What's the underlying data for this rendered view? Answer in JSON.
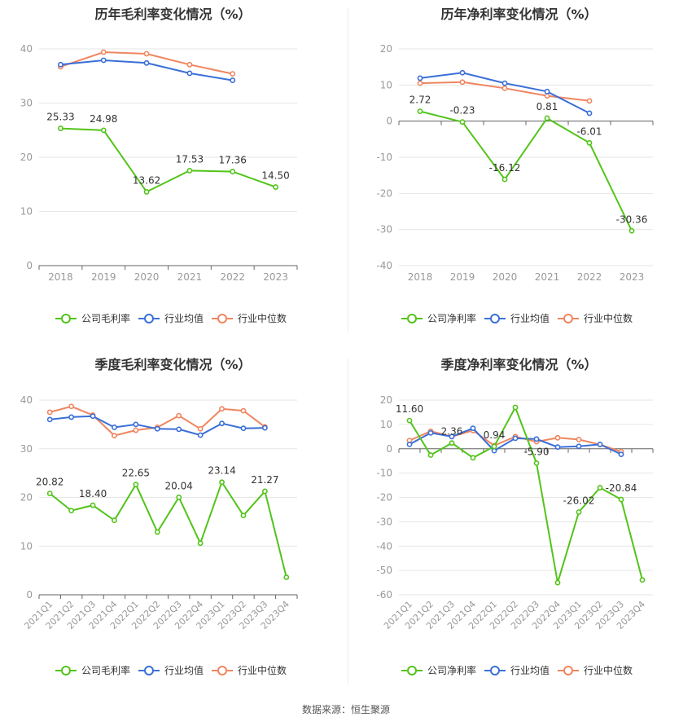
{
  "source": "数据来源：恒生聚源",
  "legend_labels": [
    "行业均值",
    "行业中位数"
  ],
  "colors": {
    "company": "#52c41a",
    "avg": "#3a6fd8",
    "median": "#f0855f",
    "grid": "#e6e6e6",
    "axis_text": "#999999",
    "label_text": "#333333"
  },
  "chart_data": [
    {
      "type": "line",
      "title": "历年毛利率变化情况（%）",
      "categories": [
        "2018",
        "2019",
        "2020",
        "2021",
        "2022",
        "2023"
      ],
      "ylim": [
        0,
        40
      ],
      "yticks": [
        0,
        10,
        20,
        30,
        40
      ],
      "grid": true,
      "legend": "bottom",
      "series": [
        {
          "name": "公司毛利率",
          "values": [
            25.33,
            24.98,
            13.62,
            17.53,
            17.36,
            14.5
          ],
          "labels": [
            "25.33",
            "24.98",
            "13.62",
            "17.53",
            "17.36",
            "14.50"
          ]
        },
        {
          "name": "行业均值",
          "values": [
            37.1,
            37.9,
            37.4,
            35.5,
            34.2,
            null
          ]
        },
        {
          "name": "行业中位数",
          "values": [
            36.7,
            39.4,
            39.1,
            37.1,
            35.4,
            null
          ]
        }
      ]
    },
    {
      "type": "line",
      "title": "历年净利率变化情况（%）",
      "categories": [
        "2018",
        "2019",
        "2020",
        "2021",
        "2022",
        "2023"
      ],
      "ylim": [
        -40,
        20
      ],
      "yticks": [
        -40,
        -30,
        -20,
        -10,
        0,
        10,
        20
      ],
      "grid": true,
      "legend": "bottom",
      "series": [
        {
          "name": "公司净利率",
          "values": [
            2.72,
            -0.23,
            -16.12,
            0.81,
            -6.01,
            -30.36
          ],
          "labels": [
            "2.72",
            "-0.23",
            "-16.12",
            "0.81",
            "-6.01",
            "-30.36"
          ]
        },
        {
          "name": "行业均值",
          "values": [
            11.9,
            13.4,
            10.5,
            8.2,
            2.2,
            null
          ]
        },
        {
          "name": "行业中位数",
          "values": [
            10.5,
            10.8,
            9.1,
            7.0,
            5.6,
            null
          ]
        }
      ]
    },
    {
      "type": "line",
      "title": "季度毛利率变化情况（%）",
      "categories": [
        "2021Q1",
        "2021Q2",
        "2021Q3",
        "2021Q4",
        "2022Q1",
        "2022Q2",
        "2022Q3",
        "2022Q4",
        "2023Q1",
        "2023Q2",
        "2023Q3",
        "2023Q4"
      ],
      "ylim": [
        0,
        40
      ],
      "yticks": [
        0,
        10,
        20,
        30,
        40
      ],
      "grid": true,
      "legend": "bottom",
      "series": [
        {
          "name": "公司毛利率",
          "values": [
            20.82,
            17.3,
            18.4,
            15.3,
            22.65,
            12.9,
            20.04,
            10.6,
            23.14,
            16.3,
            21.27,
            3.6
          ],
          "labels": [
            "20.82",
            "",
            "18.40",
            "",
            "22.65",
            "",
            "20.04",
            "",
            "23.14",
            "",
            "21.27",
            ""
          ]
        },
        {
          "name": "行业均值",
          "values": [
            36.0,
            36.5,
            36.7,
            34.4,
            35.0,
            34.1,
            34.0,
            32.8,
            35.2,
            34.2,
            34.3,
            null
          ]
        },
        {
          "name": "行业中位数",
          "values": [
            37.5,
            38.7,
            36.9,
            32.7,
            33.8,
            34.4,
            36.8,
            34.1,
            38.2,
            37.8,
            34.5,
            null
          ]
        }
      ]
    },
    {
      "type": "line",
      "title": "季度净利率变化情况（%）",
      "categories": [
        "2021Q1",
        "2021Q2",
        "2021Q3",
        "2021Q4",
        "2022Q1",
        "2022Q2",
        "2022Q3",
        "2022Q4",
        "2023Q1",
        "2023Q2",
        "2023Q3",
        "2023Q4"
      ],
      "ylim": [
        -60,
        20
      ],
      "yticks": [
        -60,
        -50,
        -40,
        -30,
        -20,
        -10,
        0,
        10,
        20
      ],
      "grid": true,
      "legend": "bottom",
      "series": [
        {
          "name": "公司净利率",
          "values": [
            11.6,
            -2.6,
            2.36,
            -3.7,
            0.94,
            17.0,
            -5.9,
            -55.0,
            -26.02,
            -16.0,
            -20.84,
            -53.9
          ],
          "labels": [
            "11.60",
            "",
            "2.36",
            "",
            "0.94",
            "",
            "-5.90",
            "",
            "-26.02",
            "",
            "-20.84",
            ""
          ]
        },
        {
          "name": "行业均值",
          "values": [
            1.8,
            6.5,
            5.0,
            8.4,
            -0.8,
            4.3,
            4.0,
            0.7,
            1.0,
            1.8,
            -2.3,
            null
          ]
        },
        {
          "name": "行业中位数",
          "values": [
            3.4,
            7.2,
            5.0,
            7.5,
            1.3,
            5.0,
            2.9,
            4.5,
            3.8,
            1.7,
            -1.2,
            null
          ]
        }
      ]
    }
  ]
}
